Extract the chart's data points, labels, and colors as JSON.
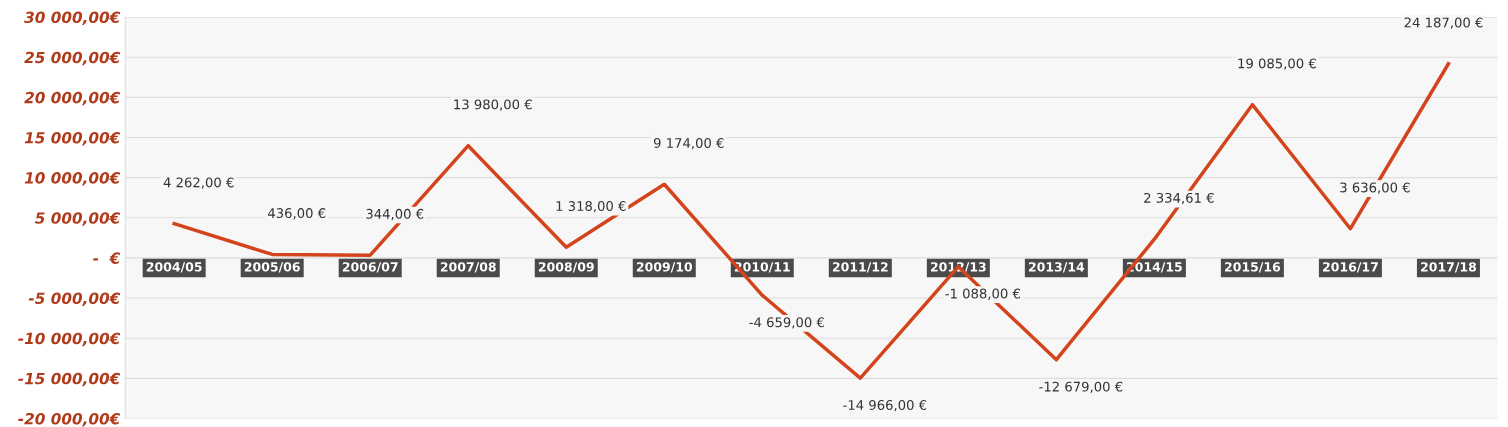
{
  "chart_data": {
    "type": "line",
    "categories": [
      "2004/05",
      "2005/06",
      "2006/07",
      "2007/08",
      "2008/09",
      "2009/10",
      "2010/11",
      "2011/12",
      "2012/13",
      "2013/14",
      "2014/15",
      "2015/16",
      "2016/17",
      "2017/18"
    ],
    "series": [
      {
        "color": "#d4441c",
        "values": [
          4262,
          436,
          344,
          13980,
          1318,
          9174,
          -4659,
          -14966,
          -1088,
          -12679,
          2334.61,
          19085,
          3636,
          24187
        ],
        "value_labels": [
          "4 262,00 €",
          "436,00 €",
          "344,00 €",
          "13 980,00 €",
          "1 318,00 €",
          "9 174,00 €",
          "-4 659,00 €",
          "-14 966,00 €",
          "-1 088,00 €",
          "-12 679,00 €",
          "2 334,61 €",
          "19 085,00 €",
          "3 636,00 €",
          "24 187,00 €"
        ]
      }
    ],
    "ylim": [
      -20000,
      30000
    ],
    "yticks": [
      {
        "value": -20000,
        "label": "-20 000,00€"
      },
      {
        "value": -15000,
        "label": "-15 000,00€"
      },
      {
        "value": -10000,
        "label": "-10 000,00€"
      },
      {
        "value": -5000,
        "label": "-5 000,00€"
      },
      {
        "value": 0,
        "label": "-  €"
      },
      {
        "value": 5000,
        "label": "5 000,00€"
      },
      {
        "value": 10000,
        "label": "10 000,00€"
      },
      {
        "value": 15000,
        "label": "15 000,00€"
      },
      {
        "value": 20000,
        "label": "20 000,00€"
      },
      {
        "value": 25000,
        "label": "25 000,00€"
      },
      {
        "value": 30000,
        "label": "30 000,00€"
      }
    ],
    "grid": "y",
    "marker": "none",
    "line_style": "solid"
  }
}
